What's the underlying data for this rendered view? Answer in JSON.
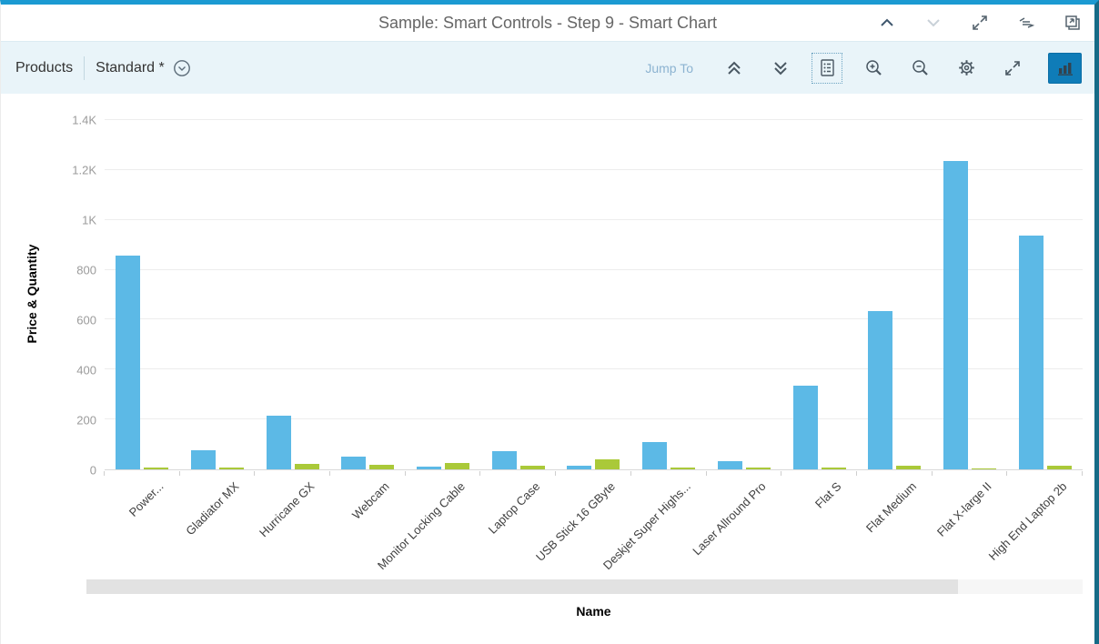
{
  "window": {
    "title": "Sample: Smart Controls - Step 9 - Smart Chart"
  },
  "header": {
    "icons": [
      "navigate-up",
      "navigate-down",
      "enter-fullscreen",
      "show-code",
      "open-in-new-window"
    ]
  },
  "toolbar": {
    "entity_label": "Products",
    "variant_label": "Standard *",
    "jump_to_label": "Jump To",
    "icons": [
      "collapse-header",
      "expand-header",
      "show-details",
      "zoom-in",
      "zoom-out",
      "settings",
      "fullscreen",
      "chart-type-bar"
    ],
    "chart_type_selected_color": "#0f7cb8"
  },
  "colors": {
    "accent_top": "#1b9ad2",
    "accent_right": "#166b87",
    "toolbar_bg": "#e9f4f9",
    "bar_blue": "#5cb9e6",
    "bar_green": "#aac939"
  },
  "chart_data": {
    "type": "bar",
    "title": "",
    "xlabel": "Name",
    "ylabel": "Price & Quantity",
    "ylim": [
      0,
      1400
    ],
    "grid": true,
    "legend_position": "none",
    "yticks": {
      "values": [
        0,
        200,
        400,
        600,
        800,
        1000,
        1200,
        1400
      ],
      "labels": [
        "0",
        "200",
        "400",
        "600",
        "800",
        "1K",
        "1.2K",
        "1.4K"
      ]
    },
    "categories": [
      "Power...",
      "Gladiator MX",
      "Hurricane GX",
      "Webcam",
      "Monitor Locking Cable",
      "Laptop Case",
      "USB Stick 16 GByte",
      "Deskjet Super Highs...",
      "Laser Allround Pro",
      "Flat S",
      "Flat Medium",
      "Flat X-large II",
      "High End Laptop 2b"
    ],
    "series": [
      {
        "name": "Price",
        "color": "#5cb9e6",
        "values": [
          856,
          76,
          215,
          52,
          11,
          74,
          14,
          110,
          34,
          335,
          636,
          1236,
          938
        ]
      },
      {
        "name": "Quantity",
        "color": "#aac939",
        "values": [
          7,
          7,
          22,
          18,
          25,
          13,
          40,
          7,
          9,
          9,
          13,
          4,
          15
        ]
      }
    ]
  }
}
